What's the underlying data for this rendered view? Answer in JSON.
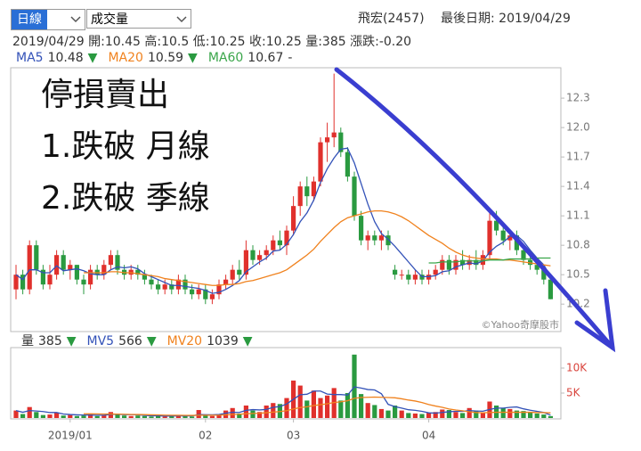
{
  "controls": {
    "period": "日線",
    "indicator": "成交量"
  },
  "stock": "飛宏(2457)",
  "last_date": "最後日期: 2019/04/29",
  "quote": "2019/04/29 開:10.45 高:10.5 低:10.25 收:10.25 量:385 漲跌:-0.20",
  "annotations": [
    "停損賣出",
    "1.跌破 月線",
    "2.跌破 季線"
  ],
  "watermark": "©Yahoo奇摩股市",
  "chart_data": [
    {
      "type": "candlestick",
      "up_color": "#e0302c",
      "down_color": "#2a9a40",
      "ylim": [
        9.92,
        12.61
      ],
      "yticks": [
        10.2,
        10.5,
        10.8,
        11.1,
        11.4,
        11.7,
        {
          "value": 12,
          "label": "12.0"
        },
        12.3
      ],
      "grid": false,
      "legend_values": [
        10.48,
        10.59,
        10.67
      ],
      "legend_trends": [
        "▼",
        "▼",
        "-"
      ],
      "open": [
        10.35,
        10.5,
        10.35,
        10.8,
        10.55,
        10.4,
        10.5,
        10.7,
        10.55,
        10.6,
        10.45,
        10.4,
        10.55,
        10.5,
        10.6,
        10.7,
        10.55,
        10.5,
        10.55,
        10.5,
        10.45,
        10.4,
        10.35,
        10.4,
        10.35,
        10.45,
        10.35,
        10.3,
        10.35,
        10.25,
        10.3,
        10.4,
        10.45,
        10.55,
        10.5,
        10.75,
        10.65,
        10.7,
        10.75,
        10.85,
        10.8,
        10.95,
        11.2,
        11.4,
        11.3,
        11.45,
        11.85,
        11.9,
        11.95,
        11.75,
        11.5,
        11.1,
        10.85,
        10.9,
        10.85,
        10.9,
        10.55,
        10.5,
        10.5,
        10.45,
        10.5,
        10.45,
        10.5,
        10.55,
        10.65,
        10.55,
        10.65,
        10.6,
        10.65,
        10.6,
        10.7,
        11.05,
        10.95,
        10.85,
        10.9,
        10.75,
        10.65,
        10.6,
        10.55,
        10.45
      ],
      "high": [
        10.6,
        10.55,
        10.85,
        10.85,
        10.6,
        10.6,
        10.75,
        10.75,
        10.65,
        10.6,
        10.5,
        10.6,
        10.6,
        10.65,
        10.75,
        10.75,
        10.6,
        10.6,
        10.6,
        10.55,
        10.5,
        10.45,
        10.45,
        10.45,
        10.5,
        10.5,
        10.4,
        10.4,
        10.4,
        10.35,
        10.45,
        10.5,
        10.6,
        10.65,
        10.85,
        10.8,
        10.75,
        10.8,
        10.9,
        10.95,
        11.0,
        11.3,
        11.45,
        11.5,
        11.5,
        11.9,
        12.05,
        12.55,
        12.0,
        11.8,
        11.55,
        11.15,
        10.95,
        10.95,
        10.95,
        10.95,
        10.6,
        10.55,
        10.55,
        10.55,
        10.55,
        10.55,
        10.6,
        10.7,
        10.7,
        10.7,
        10.75,
        10.7,
        10.75,
        10.75,
        11.15,
        11.15,
        11.0,
        10.95,
        10.95,
        10.8,
        10.7,
        10.65,
        10.6,
        10.5
      ],
      "low": [
        10.25,
        10.3,
        10.3,
        10.5,
        10.35,
        10.35,
        10.45,
        10.5,
        10.45,
        10.4,
        10.3,
        10.35,
        10.45,
        10.45,
        10.55,
        10.5,
        10.45,
        10.45,
        10.45,
        10.4,
        10.35,
        10.3,
        10.3,
        10.3,
        10.3,
        10.3,
        10.25,
        10.25,
        10.2,
        10.2,
        10.25,
        10.35,
        10.4,
        10.45,
        10.45,
        10.6,
        10.6,
        10.65,
        10.7,
        10.75,
        10.7,
        10.9,
        11.1,
        11.2,
        11.25,
        11.4,
        11.65,
        11.8,
        11.7,
        11.45,
        11.05,
        10.8,
        10.75,
        10.8,
        10.75,
        10.75,
        10.45,
        10.45,
        10.4,
        10.4,
        10.4,
        10.4,
        10.45,
        10.5,
        10.5,
        10.5,
        10.55,
        10.55,
        10.55,
        10.55,
        10.65,
        10.9,
        10.8,
        10.75,
        10.7,
        10.6,
        10.55,
        10.5,
        10.4,
        10.25
      ],
      "close": [
        10.5,
        10.35,
        10.8,
        10.55,
        10.4,
        10.5,
        10.7,
        10.55,
        10.6,
        10.45,
        10.4,
        10.55,
        10.5,
        10.6,
        10.7,
        10.55,
        10.5,
        10.55,
        10.5,
        10.45,
        10.4,
        10.35,
        10.4,
        10.35,
        10.45,
        10.35,
        10.3,
        10.35,
        10.25,
        10.3,
        10.4,
        10.45,
        10.55,
        10.5,
        10.75,
        10.65,
        10.7,
        10.75,
        10.85,
        10.8,
        10.95,
        11.2,
        11.4,
        11.3,
        11.45,
        11.85,
        11.9,
        11.95,
        11.75,
        11.5,
        11.1,
        10.85,
        10.9,
        10.85,
        10.9,
        10.8,
        10.5,
        10.5,
        10.45,
        10.5,
        10.45,
        10.5,
        10.55,
        10.65,
        10.55,
        10.65,
        10.6,
        10.65,
        10.6,
        10.7,
        11.05,
        10.95,
        10.85,
        10.9,
        10.75,
        10.65,
        10.6,
        10.55,
        10.45,
        10.25
      ],
      "series": [
        {
          "name": "MA5",
          "color": "#3352b8",
          "values": [
            10.5,
            10.45,
            10.55,
            10.55,
            10.52,
            10.52,
            10.59,
            10.54,
            10.55,
            10.56,
            10.54,
            10.51,
            10.5,
            10.5,
            10.55,
            10.58,
            10.57,
            10.58,
            10.56,
            10.51,
            10.48,
            10.45,
            10.42,
            10.39,
            10.39,
            10.38,
            10.37,
            10.36,
            10.34,
            10.31,
            10.32,
            10.35,
            10.39,
            10.44,
            10.53,
            10.58,
            10.63,
            10.67,
            10.74,
            10.75,
            10.81,
            10.91,
            11.04,
            11.13,
            11.26,
            11.44,
            11.58,
            11.69,
            11.78,
            11.79,
            11.64,
            11.43,
            11.22,
            11.04,
            10.92,
            10.86,
            10.79,
            10.71,
            10.63,
            10.55,
            10.48,
            10.48,
            10.49,
            10.53,
            10.54,
            10.58,
            10.6,
            10.62,
            10.61,
            10.64,
            10.73,
            10.79,
            10.83,
            10.89,
            10.9,
            10.84,
            10.75,
            10.67,
            10.6,
            10.48
          ]
        },
        {
          "name": "MA20",
          "color": "#f0821e",
          "values": [
            null,
            null,
            null,
            null,
            null,
            null,
            null,
            null,
            null,
            null,
            10.52,
            10.52,
            10.52,
            10.52,
            10.53,
            10.53,
            10.52,
            10.52,
            10.51,
            10.5,
            10.49,
            10.48,
            10.46,
            10.45,
            10.44,
            10.43,
            10.42,
            10.41,
            10.4,
            10.39,
            10.39,
            10.4,
            10.4,
            10.41,
            10.43,
            10.44,
            10.46,
            10.48,
            10.5,
            10.52,
            10.55,
            10.6,
            10.65,
            10.7,
            10.76,
            10.84,
            10.91,
            10.98,
            11.04,
            11.08,
            11.1,
            11.12,
            11.14,
            11.15,
            11.15,
            11.14,
            11.12,
            11.09,
            11.05,
            11.0,
            10.95,
            10.9,
            10.86,
            10.82,
            10.77,
            10.73,
            10.7,
            10.68,
            10.67,
            10.66,
            10.66,
            10.66,
            10.65,
            10.65,
            10.64,
            10.63,
            10.62,
            10.61,
            10.6,
            10.59
          ]
        },
        {
          "name": "MA60",
          "color": "#3aa64a",
          "values": [
            null,
            null,
            null,
            null,
            null,
            null,
            null,
            null,
            null,
            null,
            null,
            null,
            null,
            null,
            null,
            null,
            null,
            null,
            null,
            null,
            null,
            null,
            null,
            null,
            null,
            null,
            null,
            null,
            null,
            null,
            null,
            null,
            null,
            null,
            null,
            null,
            null,
            null,
            null,
            null,
            null,
            null,
            null,
            null,
            null,
            null,
            null,
            null,
            null,
            null,
            null,
            null,
            null,
            null,
            null,
            null,
            null,
            null,
            null,
            null,
            null,
            10.62,
            10.62,
            10.63,
            10.63,
            10.63,
            10.64,
            10.64,
            10.64,
            10.64,
            10.65,
            10.65,
            10.65,
            10.66,
            10.66,
            10.66,
            10.66,
            10.67,
            10.67,
            10.67
          ]
        }
      ]
    },
    {
      "type": "bar",
      "name": "量",
      "current": 385,
      "current_trend": "▼",
      "ylim": [
        0,
        14100
      ],
      "yticks": [
        {
          "value": 5000,
          "label": "5K"
        },
        {
          "value": 10000,
          "label": "10K"
        }
      ],
      "grid": false,
      "legend_values": [
        566,
        1039
      ],
      "legend_trends": [
        "▼",
        "▼"
      ],
      "categories": [
        null,
        null,
        null,
        null,
        null,
        null,
        null,
        null,
        "2019/01",
        null,
        null,
        null,
        null,
        null,
        null,
        null,
        null,
        null,
        null,
        null,
        null,
        null,
        null,
        null,
        null,
        null,
        null,
        null,
        "02",
        null,
        null,
        null,
        null,
        null,
        null,
        null,
        null,
        null,
        null,
        null,
        null,
        "03",
        null,
        null,
        null,
        null,
        null,
        null,
        null,
        null,
        null,
        null,
        null,
        null,
        null,
        null,
        null,
        null,
        null,
        null,
        null,
        "04",
        null,
        null,
        null,
        null,
        null,
        null,
        null,
        null,
        null,
        null,
        null,
        null,
        null,
        null,
        null,
        null,
        null,
        null
      ],
      "values": [
        1500,
        800,
        2200,
        1200,
        600,
        700,
        1000,
        500,
        600,
        400,
        500,
        900,
        400,
        600,
        1200,
        700,
        500,
        400,
        500,
        400,
        300,
        400,
        300,
        600,
        500,
        400,
        300,
        1600,
        500,
        400,
        800,
        1500,
        2000,
        900,
        2500,
        1500,
        1200,
        2500,
        3000,
        2800,
        4000,
        7500,
        6500,
        3500,
        5500,
        4000,
        4500,
        6000,
        3500,
        5000,
        12700,
        4800,
        3000,
        2600,
        1800,
        1500,
        2500,
        1500,
        1000,
        900,
        800,
        1000,
        1200,
        1700,
        1600,
        1200,
        1000,
        2000,
        1500,
        1100,
        3300,
        2500,
        2000,
        1800,
        1500,
        1400,
        1100,
        900,
        700,
        385
      ],
      "series": [
        {
          "name": "MV5",
          "color": "#3352b8",
          "values": [
            1500,
            1150,
            1500,
            1400,
            1300,
            1100,
            1100,
            800,
            700,
            640,
            600,
            580,
            560,
            560,
            720,
            760,
            680,
            680,
            660,
            540,
            460,
            440,
            380,
            400,
            420,
            440,
            420,
            680,
            660,
            640,
            720,
            960,
            1160,
            1120,
            1540,
            1680,
            1620,
            1720,
            2140,
            2300,
            2800,
            3760,
            4660,
            4760,
            5400,
            5400,
            4800,
            4700,
            4700,
            4600,
            6240,
            6000,
            5700,
            5620,
            4860,
            2740,
            2280,
            1980,
            1660,
            1540,
            1340,
            1040,
            980,
            1120,
            1260,
            1340,
            1340,
            1500,
            1400,
            1360,
            1720,
            1980,
            1980,
            2140,
            2220,
            1840,
            1560,
            1340,
            1120,
            566
          ]
        },
        {
          "name": "MV20",
          "color": "#f0821e",
          "values": [
            null,
            null,
            null,
            null,
            null,
            null,
            null,
            null,
            null,
            null,
            850,
            840,
            820,
            800,
            800,
            780,
            760,
            720,
            700,
            680,
            640,
            620,
            580,
            560,
            550,
            540,
            520,
            560,
            560,
            560,
            580,
            640,
            720,
            760,
            860,
            920,
            960,
            1060,
            1180,
            1300,
            1480,
            1800,
            2100,
            2250,
            2500,
            2680,
            2850,
            3100,
            3250,
            3450,
            3950,
            4100,
            4150,
            4200,
            4150,
            4100,
            4050,
            3850,
            3600,
            3400,
            3100,
            2700,
            2400,
            2150,
            1800,
            1600,
            1450,
            1250,
            1100,
            1050,
            1100,
            1150,
            1150,
            1150,
            1150,
            1150,
            1150,
            1100,
            1080,
            1039
          ]
        }
      ]
    }
  ]
}
